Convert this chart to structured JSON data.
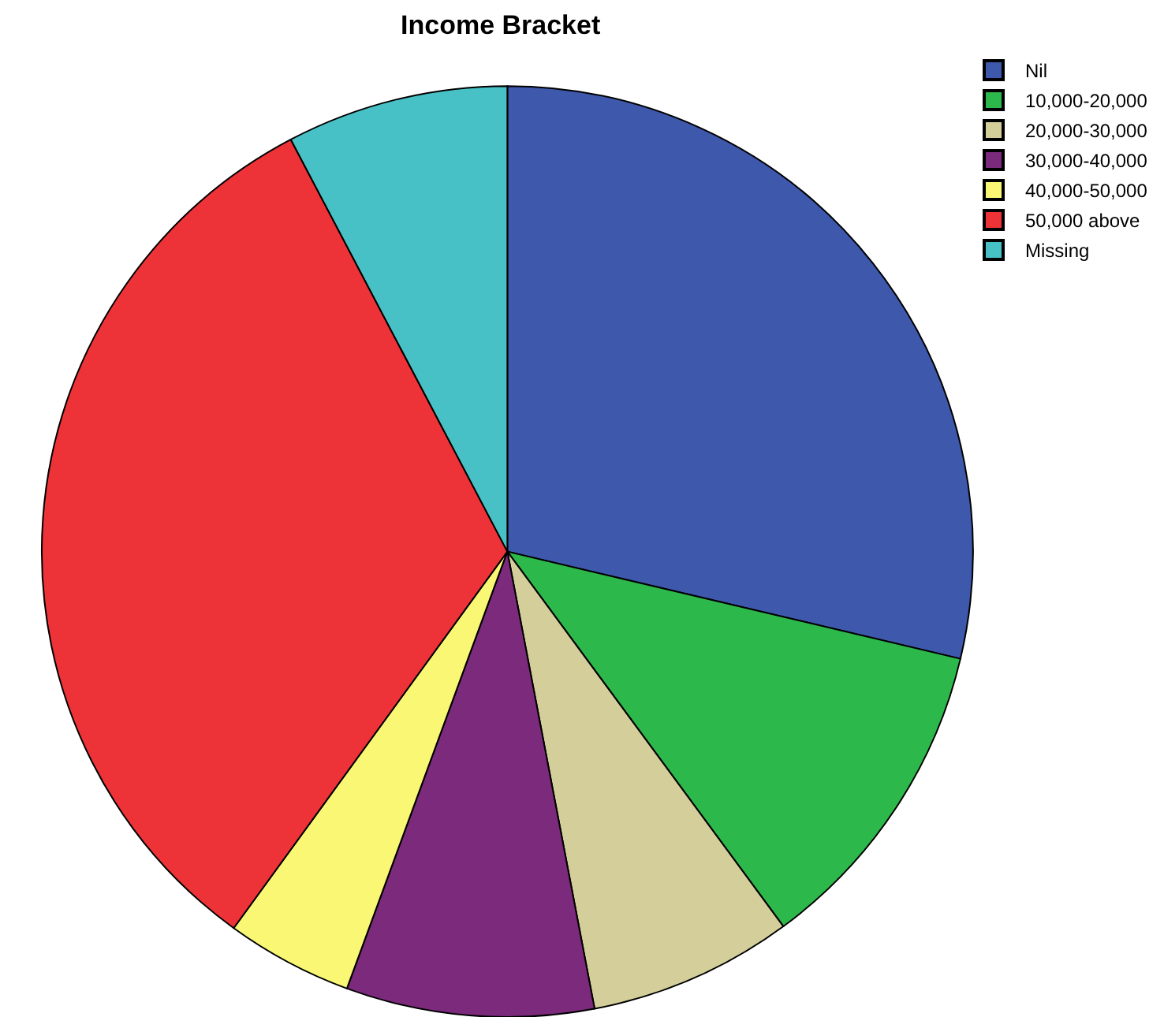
{
  "chart_data": {
    "type": "pie",
    "title": "Income Bracket",
    "categories": [
      "Nil",
      "10,000-20,000",
      "20,000-30,000",
      "30,000-40,000",
      "40,000-50,000",
      "50,000 above",
      "Missing"
    ],
    "values": [
      28.7,
      11.2,
      7.1,
      8.6,
      4.4,
      32.3,
      7.7
    ],
    "colors": [
      "#3e58ac",
      "#2db84b",
      "#d4cf9a",
      "#7b2a7c",
      "#f9f774",
      "#ee3338",
      "#48c1c6"
    ],
    "legend": "top right"
  }
}
